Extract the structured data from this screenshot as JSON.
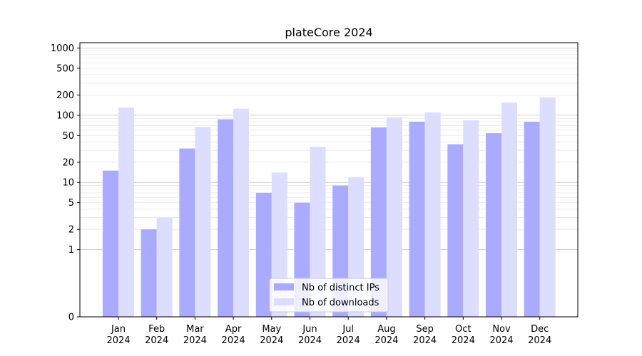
{
  "chart_data": {
    "type": "bar",
    "title": "plateCore 2024",
    "xlabel": "",
    "ylabel": "",
    "yscale": "symlog",
    "ylim": [
      0,
      1200
    ],
    "yticks": [
      0,
      1,
      2,
      5,
      10,
      20,
      50,
      100,
      200,
      500,
      1000
    ],
    "grid": "horizontal",
    "legend_position": "lower-center",
    "categories": [
      [
        "Jan",
        "2024"
      ],
      [
        "Feb",
        "2024"
      ],
      [
        "Mar",
        "2024"
      ],
      [
        "Apr",
        "2024"
      ],
      [
        "May",
        "2024"
      ],
      [
        "Jun",
        "2024"
      ],
      [
        "Jul",
        "2024"
      ],
      [
        "Aug",
        "2024"
      ],
      [
        "Sep",
        "2024"
      ],
      [
        "Oct",
        "2024"
      ],
      [
        "Nov",
        "2024"
      ],
      [
        "Dec",
        "2024"
      ]
    ],
    "series": [
      {
        "name": "Nb of distinct IPs",
        "color": "#aaaaff",
        "values": [
          15,
          2,
          32,
          87,
          7,
          5,
          9,
          66,
          80,
          37,
          54,
          80
        ]
      },
      {
        "name": "Nb of downloads",
        "color": "#ddddff",
        "values": [
          130,
          3,
          67,
          125,
          14,
          34,
          12,
          93,
          110,
          84,
          155,
          185
        ]
      }
    ]
  }
}
